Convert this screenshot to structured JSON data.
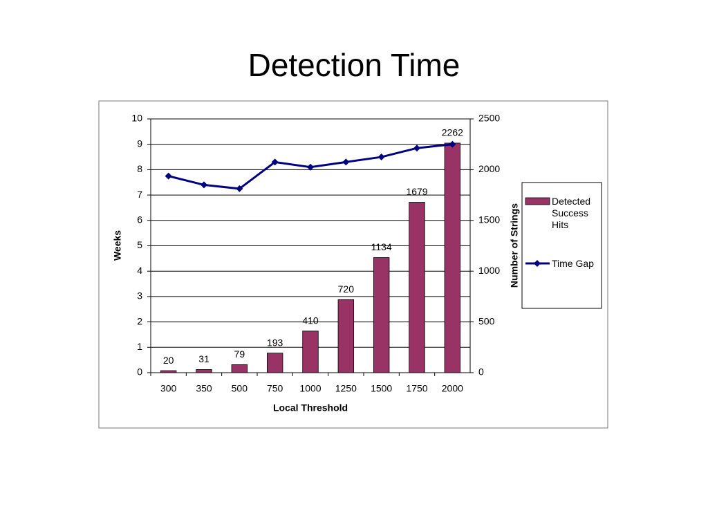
{
  "chart_data": {
    "type": "combo",
    "title": "Detection Time",
    "x_label": "Local Threshold",
    "y_label": "Weeks",
    "y2_label": "Number of Strings",
    "categories": [
      "300",
      "350",
      "500",
      "750",
      "1000",
      "1250",
      "1500",
      "1750",
      "2000"
    ],
    "series": [
      {
        "name": "Detected Success Hits",
        "type": "bar",
        "axis": "y2",
        "color": "#993366",
        "values": [
          20,
          31,
          79,
          193,
          410,
          720,
          1134,
          1679,
          2262
        ]
      },
      {
        "name": "Time Gap",
        "type": "line",
        "axis": "y",
        "color": "#000080",
        "values": [
          7.75,
          7.4,
          7.25,
          8.3,
          8.1,
          8.3,
          8.5,
          8.85,
          9.0
        ]
      }
    ],
    "ylim": [
      0,
      10
    ],
    "yticks": [
      0,
      1,
      2,
      3,
      4,
      5,
      6,
      7,
      8,
      9,
      10
    ],
    "y2lim": [
      0,
      2500
    ],
    "y2ticks": [
      0,
      500,
      1000,
      1500,
      2000,
      2500
    ],
    "grid": true,
    "legend": "right"
  }
}
